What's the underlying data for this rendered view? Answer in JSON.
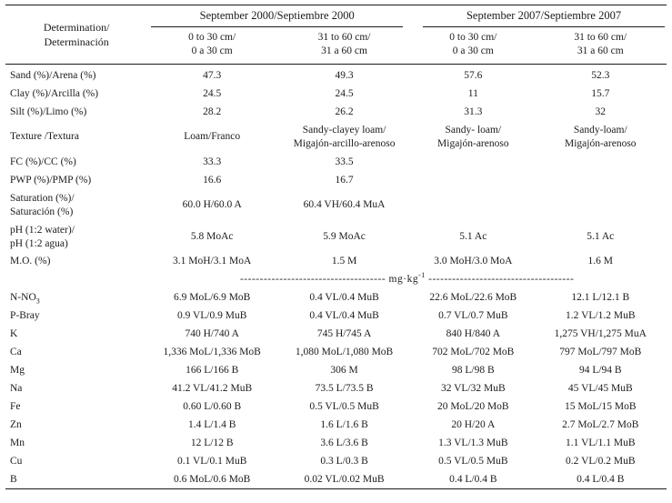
{
  "table": {
    "header": {
      "determination": "Determination/\nDeterminación",
      "groups": [
        {
          "label": "September 2000/Septiembre 2000",
          "subcols": [
            "0 to 30 cm/\n0 a 30 cm",
            "31 to 60 cm/\n31 a 60 cm"
          ]
        },
        {
          "label": "September 2007/Septiembre 2007",
          "subcols": [
            "0 to 30 cm/\n0 a 30 cm",
            "31 to 60 cm/\n31 a 60 cm"
          ]
        }
      ]
    },
    "unit_row": {
      "dashes": "-------------------------------------",
      "unit": " mg·kg",
      "superscript": "-1",
      "dashes_right": "-------------------------------------"
    },
    "rows": [
      {
        "label": "Sand (%)/Arena (%)",
        "values": [
          "47.3",
          "49.3",
          "57.6",
          "52.3"
        ]
      },
      {
        "label": "Clay (%)/Arcilla (%)",
        "values": [
          "24.5",
          "24.5",
          "11",
          "15.7"
        ]
      },
      {
        "label": "Silt (%)/Limo (%)",
        "values": [
          "28.2",
          "26.2",
          "31.3",
          "32"
        ]
      },
      {
        "label": "Texture /Textura",
        "values": [
          "Loam/Franco",
          "Sandy-clayey loam/\nMigajón-arcillo-arenoso",
          "Sandy- loam/\nMigajón-arenoso",
          "Sandy-loam/\nMigajón-arenoso"
        ]
      },
      {
        "label": "FC (%)/CC (%)",
        "values": [
          "33.3",
          "33.5",
          "",
          ""
        ]
      },
      {
        "label": "PWP (%)/PMP (%)",
        "values": [
          "16.6",
          "16.7",
          "",
          ""
        ]
      },
      {
        "label": "Saturation (%)/\nSaturación (%)",
        "values": [
          "60.0 H/60.0 A",
          "60.4 VH/60.4 MuA",
          "",
          ""
        ]
      },
      {
        "label": "pH (1:2 water)/\npH (1:2 agua)",
        "values": [
          "5.8 MoAc",
          "5.9 MoAc",
          "5.1 Ac",
          "5.1 Ac"
        ]
      },
      {
        "label": "M.O. (%)",
        "values": [
          "3.1 MoH/3.1 MoA",
          "1.5 M",
          "3.0 MoH/3.0 MoA",
          "1.6 M"
        ]
      },
      {
        "type": "separator"
      },
      {
        "label": "N-NO",
        "label_sub": "3",
        "values": [
          "6.9 MoL/6.9 MoB",
          "0.4 VL/0.4 MuB",
          "22.6 MoL/22.6 MoB",
          "12.1 L/12.1 B"
        ]
      },
      {
        "label": "P-Bray",
        "values": [
          "0.9 VL/0.9 MuB",
          "0.4 VL/0.4 MuB",
          "0.7 VL/0.7 MuB",
          "1.2 VL/1.2 MuB"
        ]
      },
      {
        "label": "K",
        "values": [
          "740 H/740 A",
          "745 H/745 A",
          "840 H/840 A",
          "1,275 VH/1,275 MuA"
        ]
      },
      {
        "label": "Ca",
        "values": [
          "1,336 MoL/1,336 MoB",
          "1,080 MoL/1,080 MoB",
          "702 MoL/702 MoB",
          "797 MoL/797 MoB"
        ]
      },
      {
        "label": "Mg",
        "values": [
          "166 L/166 B",
          "306 M",
          "98 L/98 B",
          "94 L/94 B"
        ]
      },
      {
        "label": "Na",
        "values": [
          "41.2 VL/41.2 MuB",
          "73.5 L/73.5 B",
          "32 VL/32 MuB",
          "45 VL/45 MuB"
        ]
      },
      {
        "label": "Fe",
        "values": [
          "0.60 L/0.60 B",
          "0.5 VL/0.5 MuB",
          "20 MoL/20 MoB",
          "15 MoL/15 MoB"
        ]
      },
      {
        "label": "Zn",
        "values": [
          "1.4 L/1.4 B",
          "1.6 L/1.6 B",
          "20 H/20 A",
          "2.7 MoL/2.7 MoB"
        ]
      },
      {
        "label": "Mn",
        "values": [
          "12 L/12 B",
          "3.6 L/3.6 B",
          "1.3 VL/1.3 MuB",
          "1.1 VL/1.1 MuB"
        ]
      },
      {
        "label": "Cu",
        "values": [
          "0.1 VL/0.1 MuB",
          "0.3 L/0.3 B",
          "0.5 VL/0.5 MuB",
          "0.2 VL/0.2 MuB"
        ]
      },
      {
        "label": "B",
        "values": [
          "0.6 MoL/0.6 MoB",
          "0.02 VL/0.02 MuB",
          "0.4 L/0.4 B",
          "0.4 L/0.4 B"
        ]
      }
    ]
  }
}
